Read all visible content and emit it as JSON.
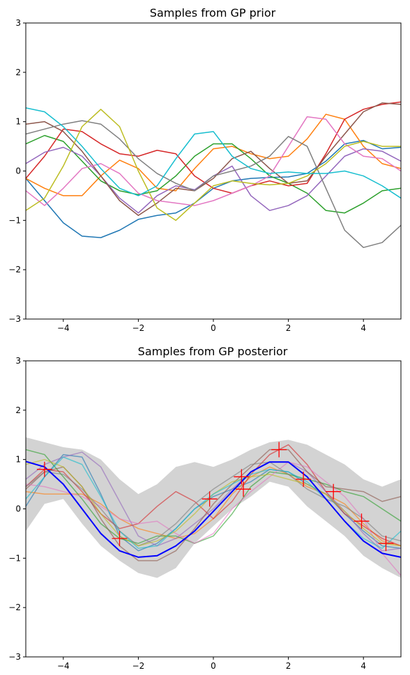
{
  "chart_data": [
    {
      "type": "line",
      "title": "Samples from GP prior",
      "xlabel": "",
      "ylabel": "",
      "xlim": [
        -5,
        5
      ],
      "ylim": [
        -3,
        3
      ],
      "xticks": [
        -4,
        -2,
        0,
        2,
        4
      ],
      "yticks": [
        -3,
        -2,
        -1,
        0,
        1,
        2,
        3
      ],
      "grid": false,
      "legend": "none",
      "series": [
        {
          "color": "#1f77b4",
          "x": [
            -5,
            -4.5,
            -4,
            -3.5,
            -3,
            -2.5,
            -2,
            -1.5,
            -1,
            -0.5,
            0,
            0.5,
            1,
            1.5,
            2,
            2.5,
            3,
            3.5,
            4,
            4.5,
            5
          ],
          "y": [
            -0.15,
            -0.6,
            -1.05,
            -1.32,
            -1.35,
            -1.2,
            -0.98,
            -0.9,
            -0.85,
            -0.65,
            -0.35,
            -0.2,
            -0.15,
            -0.13,
            -0.12,
            -0.05,
            0.2,
            0.55,
            0.62,
            0.45,
            0.48
          ]
        },
        {
          "color": "#ff7f0e",
          "x": [
            -5,
            -4.5,
            -4,
            -3.5,
            -3,
            -2.5,
            -2,
            -1.5,
            -1,
            -0.5,
            0,
            0.5,
            1,
            1.5,
            2,
            2.5,
            3,
            3.5,
            4,
            4.5,
            5
          ],
          "y": [
            -0.15,
            -0.35,
            -0.5,
            -0.5,
            -0.1,
            0.22,
            0.05,
            -0.35,
            -0.4,
            0.05,
            0.45,
            0.5,
            0.35,
            0.25,
            0.3,
            0.65,
            1.15,
            1.05,
            0.5,
            0.15,
            0.05
          ]
        },
        {
          "color": "#2ca02c",
          "x": [
            -5,
            -4.5,
            -4,
            -3.5,
            -3,
            -2.5,
            -2,
            -1.5,
            -1,
            -0.5,
            0,
            0.5,
            1,
            1.5,
            2,
            2.5,
            3,
            3.5,
            4,
            4.5,
            5
          ],
          "y": [
            0.55,
            0.72,
            0.6,
            0.2,
            -0.2,
            -0.4,
            -0.48,
            -0.4,
            -0.1,
            0.3,
            0.55,
            0.55,
            0.25,
            -0.1,
            -0.25,
            -0.45,
            -0.8,
            -0.85,
            -0.65,
            -0.4,
            -0.35
          ]
        },
        {
          "color": "#d62728",
          "x": [
            -5,
            -4.5,
            -4,
            -3.5,
            -3,
            -2.5,
            -2,
            -1.5,
            -1,
            -0.5,
            0,
            0.5,
            1,
            1.5,
            2,
            2.5,
            3,
            3.5,
            4,
            4.5,
            5
          ],
          "y": [
            -0.15,
            0.3,
            0.85,
            0.8,
            0.55,
            0.35,
            0.3,
            0.42,
            0.35,
            -0.1,
            -0.35,
            -0.45,
            -0.3,
            -0.2,
            -0.3,
            -0.25,
            0.35,
            1.05,
            1.25,
            1.35,
            1.4
          ]
        },
        {
          "color": "#9467bd",
          "x": [
            -5,
            -4.5,
            -4,
            -3.5,
            -3,
            -2.5,
            -2,
            -1.5,
            -1,
            -0.5,
            0,
            0.5,
            1,
            1.5,
            2,
            2.5,
            3,
            3.5,
            4,
            4.5,
            5
          ],
          "y": [
            0.15,
            0.38,
            0.48,
            0.3,
            -0.1,
            -0.55,
            -0.85,
            -0.5,
            -0.3,
            -0.38,
            -0.1,
            0.1,
            -0.5,
            -0.8,
            -0.7,
            -0.5,
            -0.1,
            0.3,
            0.45,
            0.4,
            0.2
          ]
        },
        {
          "color": "#8c564b",
          "x": [
            -5,
            -4.5,
            -4,
            -3.5,
            -3,
            -2.5,
            -2,
            -1.5,
            -1,
            -0.5,
            0,
            0.5,
            1,
            1.5,
            2,
            2.5,
            3,
            3.5,
            4,
            4.5,
            5
          ],
          "y": [
            0.95,
            1.0,
            0.8,
            0.4,
            -0.1,
            -0.6,
            -0.9,
            -0.65,
            -0.35,
            -0.4,
            -0.15,
            0.25,
            0.4,
            0.05,
            -0.25,
            -0.2,
            0.3,
            0.75,
            1.2,
            1.38,
            1.35
          ]
        },
        {
          "color": "#e377c2",
          "x": [
            -5,
            -4.5,
            -4,
            -3.5,
            -3,
            -2.5,
            -2,
            -1.5,
            -1,
            -0.5,
            0,
            0.5,
            1,
            1.5,
            2,
            2.5,
            3,
            3.5,
            4,
            4.5,
            5
          ],
          "y": [
            -0.4,
            -0.7,
            -0.35,
            0.05,
            0.15,
            -0.05,
            -0.45,
            -0.6,
            -0.65,
            -0.7,
            -0.6,
            -0.45,
            -0.3,
            -0.1,
            0.5,
            1.1,
            1.05,
            0.55,
            0.3,
            0.25,
            0.0
          ]
        },
        {
          "color": "#7f7f7f",
          "x": [
            -5,
            -4.5,
            -4,
            -3.5,
            -3,
            -2.5,
            -2,
            -1.5,
            -1,
            -0.5,
            0,
            0.5,
            1,
            1.5,
            2,
            2.5,
            3,
            3.5,
            4,
            4.5,
            5
          ],
          "y": [
            0.75,
            0.85,
            0.95,
            1.02,
            0.95,
            0.65,
            0.25,
            -0.05,
            -0.25,
            -0.4,
            -0.1,
            0.0,
            0.1,
            0.3,
            0.7,
            0.5,
            -0.35,
            -1.2,
            -1.55,
            -1.45,
            -1.1
          ]
        },
        {
          "color": "#bcbd22",
          "x": [
            -5,
            -4.5,
            -4,
            -3.5,
            -3,
            -2.5,
            -2,
            -1.5,
            -1,
            -0.5,
            0,
            0.5,
            1,
            1.5,
            2,
            2.5,
            3,
            3.5,
            4,
            4.5,
            5
          ],
          "y": [
            -0.8,
            -0.55,
            0.1,
            0.9,
            1.25,
            0.9,
            0.0,
            -0.75,
            -1.0,
            -0.65,
            -0.3,
            -0.2,
            -0.25,
            -0.28,
            -0.25,
            -0.1,
            0.15,
            0.5,
            0.6,
            0.5,
            0.5
          ]
        },
        {
          "color": "#17becf",
          "x": [
            -5,
            -4.5,
            -4,
            -3.5,
            -3,
            -2.5,
            -2,
            -1.5,
            -1,
            -0.5,
            0,
            0.5,
            1,
            1.5,
            2,
            2.5,
            3,
            3.5,
            4,
            4.5,
            5
          ],
          "y": [
            1.28,
            1.2,
            0.9,
            0.5,
            0.05,
            -0.35,
            -0.5,
            -0.3,
            0.25,
            0.75,
            0.8,
            0.3,
            0.05,
            -0.05,
            -0.02,
            -0.05,
            -0.05,
            0.0,
            -0.1,
            -0.3,
            -0.55
          ]
        }
      ]
    },
    {
      "type": "line",
      "title": "Samples from GP posterior",
      "xlabel": "",
      "ylabel": "",
      "xlim": [
        -5,
        5
      ],
      "ylim": [
        -3,
        3
      ],
      "xticks": [
        -4,
        -2,
        0,
        2,
        4
      ],
      "yticks": [
        -3,
        -2,
        -1,
        0,
        1,
        2,
        3
      ],
      "grid": false,
      "legend": "none",
      "band": {
        "color": "#d3d3d3",
        "x": [
          -5,
          -4.5,
          -4,
          -3.5,
          -3,
          -2.5,
          -2,
          -1.5,
          -1,
          -0.5,
          0,
          0.5,
          1,
          1.5,
          2,
          2.5,
          3,
          3.5,
          4,
          4.5,
          5
        ],
        "upper": [
          1.45,
          1.35,
          1.25,
          1.2,
          1.0,
          0.6,
          0.3,
          0.5,
          0.85,
          0.95,
          0.85,
          1.0,
          1.2,
          1.35,
          1.4,
          1.3,
          1.1,
          0.9,
          0.6,
          0.45,
          0.6
        ],
        "lower": [
          -0.45,
          0.1,
          0.2,
          -0.3,
          -0.75,
          -1.05,
          -1.3,
          -1.4,
          -1.2,
          -0.7,
          -0.35,
          0.0,
          0.25,
          0.55,
          0.45,
          0.05,
          -0.25,
          -0.55,
          -0.95,
          -1.2,
          -1.4
        ]
      },
      "mean": {
        "color": "#0000ff",
        "x": [
          -5,
          -4.5,
          -4,
          -3.5,
          -3,
          -2.5,
          -2,
          -1.5,
          -1,
          -0.5,
          0,
          0.5,
          1,
          1.5,
          2,
          2.5,
          3,
          3.5,
          4,
          4.5,
          5
        ],
        "y": [
          0.96,
          0.85,
          0.5,
          0.0,
          -0.5,
          -0.85,
          -0.98,
          -0.95,
          -0.75,
          -0.45,
          -0.05,
          0.35,
          0.75,
          0.95,
          0.95,
          0.65,
          0.2,
          -0.25,
          -0.65,
          -0.9,
          -0.98
        ]
      },
      "observations": {
        "color": "#ff0000",
        "marker": "+",
        "x": [
          -4.5,
          -2.5,
          -0.1,
          0.75,
          0.8,
          1.75,
          2.4,
          3.2,
          3.95,
          4.6
        ],
        "y": [
          0.8,
          -0.6,
          0.2,
          0.65,
          0.4,
          1.2,
          0.6,
          0.35,
          -0.25,
          -0.7
        ]
      },
      "series": [
        {
          "color": "#1f77b4",
          "x": [
            -5,
            -4.5,
            -4,
            -3.5,
            -3,
            -2.5,
            -2,
            -1.5,
            -1,
            -0.5,
            0,
            0.5,
            1,
            1.5,
            2,
            2.5,
            3,
            3.5,
            4,
            4.5,
            5
          ],
          "y": [
            0.05,
            0.65,
            1.1,
            1.05,
            0.3,
            -0.55,
            -0.85,
            -0.7,
            -0.4,
            0.0,
            0.25,
            0.4,
            0.55,
            0.8,
            0.75,
            0.5,
            0.3,
            -0.1,
            -0.45,
            -0.75,
            -0.8
          ]
        },
        {
          "color": "#ff7f0e",
          "x": [
            -5,
            -4.5,
            -4,
            -3.5,
            -3,
            -2.5,
            -2,
            -1.5,
            -1,
            -0.5,
            0,
            0.5,
            1,
            1.5,
            2,
            2.5,
            3,
            3.5,
            4,
            4.5,
            5
          ],
          "y": [
            0.35,
            0.3,
            0.3,
            0.3,
            0.1,
            -0.2,
            -0.4,
            -0.5,
            -0.6,
            -0.5,
            -0.2,
            0.3,
            0.65,
            0.85,
            0.7,
            0.45,
            0.3,
            0.1,
            -0.3,
            -0.65,
            -0.75
          ]
        },
        {
          "color": "#2ca02c",
          "x": [
            -5,
            -4.5,
            -4,
            -3.5,
            -3,
            -2.5,
            -2,
            -1.5,
            -1,
            -0.5,
            0,
            0.5,
            1,
            1.5,
            2,
            2.5,
            3,
            3.5,
            4,
            4.5,
            5
          ],
          "y": [
            1.2,
            1.1,
            0.65,
            0.2,
            -0.3,
            -0.6,
            -0.7,
            -0.55,
            -0.55,
            -0.7,
            -0.55,
            -0.1,
            0.45,
            0.75,
            0.7,
            0.6,
            0.5,
            0.35,
            0.25,
            0.0,
            -0.25
          ]
        },
        {
          "color": "#d62728",
          "x": [
            -5,
            -4.5,
            -4,
            -3.5,
            -3,
            -2.5,
            -2,
            -1.5,
            -1,
            -0.5,
            0,
            0.5,
            1,
            1.5,
            2,
            2.5,
            3,
            3.5,
            4,
            4.5,
            5
          ],
          "y": [
            0.45,
            0.8,
            0.75,
            0.35,
            -0.1,
            -0.4,
            -0.3,
            0.05,
            0.35,
            0.15,
            -0.2,
            0.15,
            0.7,
            1.1,
            1.3,
            0.9,
            0.35,
            -0.1,
            -0.35,
            -0.6,
            -0.75
          ]
        },
        {
          "color": "#9467bd",
          "x": [
            -5,
            -4.5,
            -4,
            -3.5,
            -3,
            -2.5,
            -2,
            -1.5,
            -1,
            -0.5,
            0,
            0.5,
            1,
            1.5,
            2,
            2.5,
            3,
            3.5,
            4,
            4.5,
            5
          ],
          "y": [
            0.6,
            0.9,
            1.05,
            1.15,
            0.85,
            0.15,
            -0.55,
            -0.75,
            -0.6,
            -0.3,
            0.0,
            0.4,
            0.75,
            0.95,
            0.95,
            0.75,
            0.35,
            -0.05,
            -0.5,
            -0.85,
            -0.8
          ]
        },
        {
          "color": "#8c564b",
          "x": [
            -5,
            -4.5,
            -4,
            -3.5,
            -3,
            -2.5,
            -2,
            -1.5,
            -1,
            -0.5,
            0,
            0.5,
            1,
            1.5,
            2,
            2.5,
            3,
            3.5,
            4,
            4.5,
            5
          ],
          "y": [
            0.4,
            0.75,
            0.85,
            0.45,
            -0.2,
            -0.75,
            -1.05,
            -1.05,
            -0.85,
            -0.4,
            0.1,
            0.5,
            0.85,
            1.2,
            1.2,
            0.75,
            0.45,
            0.4,
            0.35,
            0.15,
            0.25
          ]
        },
        {
          "color": "#e377c2",
          "x": [
            -5,
            -4.5,
            -4,
            -3.5,
            -3,
            -2.5,
            -2,
            -1.5,
            -1,
            -0.5,
            0,
            0.5,
            1,
            1.5,
            2,
            2.5,
            3,
            3.5,
            4,
            4.5,
            5
          ],
          "y": [
            0.5,
            0.45,
            0.35,
            0.25,
            0.05,
            -0.2,
            -0.3,
            -0.25,
            -0.5,
            -0.7,
            -0.5,
            0.0,
            0.35,
            0.65,
            0.95,
            0.85,
            0.55,
            0.25,
            -0.2,
            -0.9,
            -1.35
          ]
        },
        {
          "color": "#7f7f7f",
          "x": [
            -5,
            -4.5,
            -4,
            -3.5,
            -3,
            -2.5,
            -2,
            -1.5,
            -1,
            -0.5,
            0,
            0.5,
            1,
            1.5,
            2,
            2.5,
            3,
            3.5,
            4,
            4.5,
            5
          ],
          "y": [
            0.45,
            0.75,
            0.7,
            0.4,
            0.0,
            -0.45,
            -0.75,
            -0.6,
            -0.3,
            0.1,
            0.4,
            0.65,
            0.9,
            0.95,
            0.7,
            0.4,
            0.2,
            0.05,
            -0.2,
            -0.55,
            -0.65
          ]
        },
        {
          "color": "#bcbd22",
          "x": [
            -5,
            -4.5,
            -4,
            -3.5,
            -3,
            -2.5,
            -2,
            -1.5,
            -1,
            -0.5,
            0,
            0.5,
            1,
            1.5,
            2,
            2.5,
            3,
            3.5,
            4,
            4.5,
            5
          ],
          "y": [
            0.9,
            1.0,
            0.85,
            0.45,
            -0.1,
            -0.55,
            -0.75,
            -0.65,
            -0.45,
            -0.1,
            0.3,
            0.55,
            0.65,
            0.7,
            0.6,
            0.5,
            0.3,
            -0.05,
            -0.4,
            -0.7,
            -0.75
          ]
        },
        {
          "color": "#17becf",
          "x": [
            -5,
            -4.5,
            -4,
            -3.5,
            -3,
            -2.5,
            -2,
            -1.5,
            -1,
            -0.5,
            0,
            0.5,
            1,
            1.5,
            2,
            2.5,
            3,
            3.5,
            4,
            4.5,
            5
          ],
          "y": [
            0.2,
            0.65,
            1.05,
            0.9,
            0.25,
            -0.45,
            -0.8,
            -0.75,
            -0.4,
            0.0,
            0.3,
            0.5,
            0.7,
            0.8,
            0.75,
            0.55,
            0.2,
            -0.25,
            -0.6,
            -0.8,
            -0.45
          ]
        }
      ]
    }
  ]
}
